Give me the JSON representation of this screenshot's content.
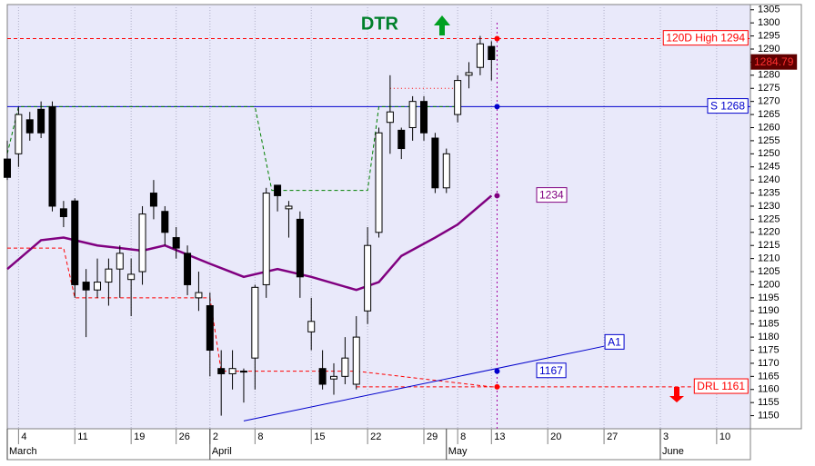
{
  "chart_data": {
    "type": "candlestick",
    "title": "DTR",
    "xlim": [
      0,
      66
    ],
    "ylim": [
      1145,
      1307
    ],
    "yticks": [
      1150,
      1155,
      1160,
      1165,
      1170,
      1175,
      1180,
      1185,
      1190,
      1195,
      1200,
      1205,
      1210,
      1215,
      1220,
      1225,
      1230,
      1235,
      1240,
      1245,
      1250,
      1255,
      1260,
      1265,
      1270,
      1275,
      1280,
      1285,
      1290,
      1295,
      1300,
      1305
    ],
    "xticks": [
      {
        "value": 1,
        "label": "4"
      },
      {
        "value": 6,
        "label": "11"
      },
      {
        "value": 11,
        "label": "19"
      },
      {
        "value": 15,
        "label": "26"
      },
      {
        "value": 18,
        "label": "2"
      },
      {
        "value": 22,
        "label": "8"
      },
      {
        "value": 27,
        "label": "15"
      },
      {
        "value": 32,
        "label": "22"
      },
      {
        "value": 37,
        "label": "29"
      },
      {
        "value": 40,
        "label": "8"
      },
      {
        "value": 43,
        "label": "13"
      },
      {
        "value": 48,
        "label": "20"
      },
      {
        "value": 53,
        "label": "27"
      },
      {
        "value": 58,
        "label": "3"
      },
      {
        "value": 63,
        "label": "10"
      }
    ],
    "month_ticks": [
      {
        "value": 0,
        "label": "March"
      },
      {
        "value": 18,
        "label": "April"
      },
      {
        "value": 39,
        "label": "May"
      },
      {
        "value": 58,
        "label": "June"
      }
    ],
    "grid": true,
    "candles": {
      "open": [
        1248,
        1250,
        1263,
        1267,
        1268,
        1229,
        1232,
        1201,
        1198,
        1201,
        1206,
        1202,
        1205,
        1235,
        1228,
        1218,
        1212,
        1195,
        1192,
        1168,
        1166,
        1167,
        1172,
        1200,
        1238,
        1229,
        1225,
        1182,
        1168,
        1164,
        1165,
        1162,
        1190,
        1220,
        1262,
        1259,
        1260,
        1270,
        1256,
        1237,
        1265,
        1280,
        1283,
        1291
      ],
      "high": [
        1255,
        1268,
        1266,
        1270,
        1270,
        1232,
        1233,
        1206,
        1210,
        1210,
        1215,
        1210,
        1230,
        1240,
        1230,
        1222,
        1215,
        1205,
        1197,
        1175,
        1175,
        1168,
        1200,
        1237,
        1238,
        1232,
        1228,
        1195,
        1175,
        1170,
        1180,
        1188,
        1222,
        1260,
        1280,
        1260,
        1272,
        1272,
        1258,
        1252,
        1280,
        1285,
        1295,
        1293
      ],
      "low": [
        1240,
        1245,
        1255,
        1256,
        1228,
        1222,
        1195,
        1180,
        1195,
        1192,
        1195,
        1188,
        1200,
        1225,
        1215,
        1210,
        1196,
        1190,
        1165,
        1150,
        1160,
        1155,
        1160,
        1195,
        1228,
        1218,
        1195,
        1175,
        1160,
        1158,
        1162,
        1160,
        1185,
        1218,
        1250,
        1248,
        1255,
        1255,
        1235,
        1235,
        1262,
        1275,
        1280,
        1278
      ],
      "close": [
        1241,
        1265,
        1258,
        1258,
        1230,
        1226,
        1200,
        1198,
        1201,
        1206,
        1212,
        1204,
        1227,
        1230,
        1220,
        1214,
        1200,
        1197,
        1175,
        1166,
        1168,
        1167,
        1199,
        1235,
        1234,
        1230,
        1203,
        1186,
        1162,
        1165,
        1172,
        1180,
        1215,
        1258,
        1266,
        1252,
        1270,
        1258,
        1237,
        1250,
        1278,
        1281,
        1292,
        1286
      ]
    },
    "series": [
      {
        "color": "#800080",
        "style": "solid",
        "x": [
          0,
          3,
          5,
          8,
          12,
          14,
          18,
          21,
          24,
          27,
          31,
          33,
          35,
          38,
          40,
          43
        ],
        "values": [
          1206,
          1217,
          1218,
          1215,
          1213,
          1215,
          1208,
          1203,
          1206,
          1203,
          1198,
          1201,
          1211,
          1218,
          1223,
          1234
        ]
      },
      {
        "color": "#008000",
        "style": "dashed",
        "x": [
          0,
          1,
          22,
          23.5,
          32,
          33,
          40
        ],
        "values": [
          1250,
          1268,
          1268,
          1236,
          1236,
          1268,
          1268
        ]
      },
      {
        "color": "#ff0000",
        "style": "dashed",
        "x": [
          0,
          5,
          6,
          17,
          18,
          19,
          31,
          43
        ],
        "values": [
          1214,
          1214,
          1195,
          1195,
          1195,
          1167,
          1167,
          1161
        ]
      },
      {
        "color": "#ff0000",
        "style": "dotted",
        "x": [
          34,
          40
        ],
        "values": [
          1275,
          1275
        ]
      }
    ],
    "levels": [
      {
        "label": "120D High 1294",
        "value": 1294,
        "color": "#ff0000",
        "style": "dashed",
        "start": 0
      },
      {
        "label": "S 1268",
        "value": 1268,
        "color": "#0000cc",
        "style": "solid",
        "start": 0
      },
      {
        "label": "DRL 1161",
        "value": 1161,
        "color": "#ff0000",
        "style": "dashed",
        "start": 31
      }
    ],
    "trendline": {
      "label": "A1",
      "color": "#0000cc",
      "x": [
        21,
        53
      ],
      "values": [
        1148,
        1176.5
      ]
    },
    "marker_x": 43.5,
    "annotations": [
      {
        "label": "1234",
        "value": 1234,
        "color": "#800080"
      },
      {
        "label": "1167",
        "value": 1167,
        "color": "#0000cc"
      }
    ],
    "last_price": {
      "label": "1284.79",
      "value": 1284.79
    }
  }
}
